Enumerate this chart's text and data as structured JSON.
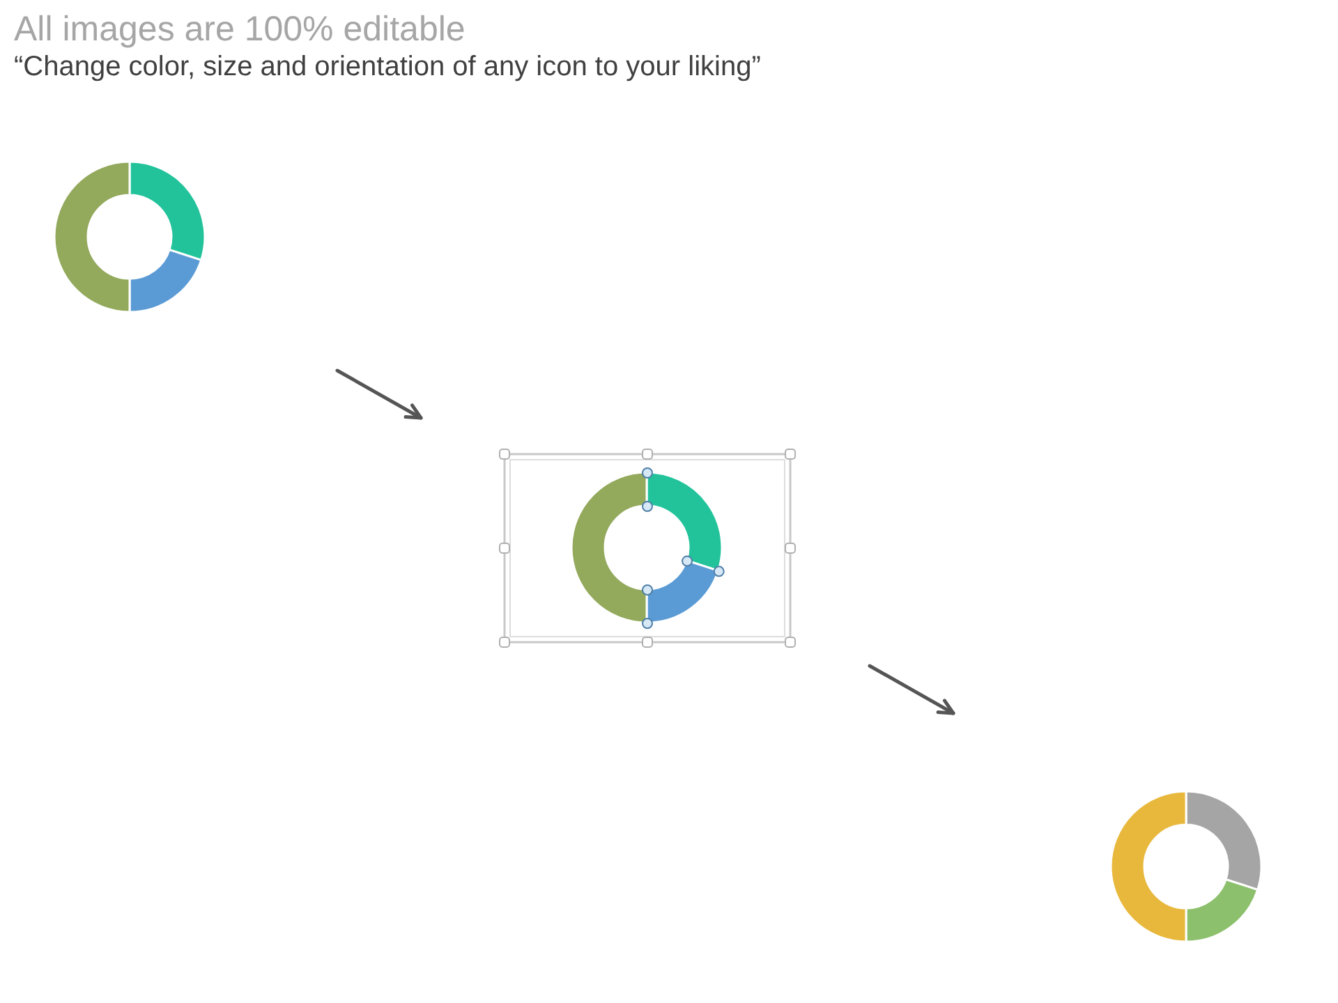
{
  "chart_data": [
    {
      "type": "donut",
      "title": "All images are 100% editable",
      "subtitle": "“Change color, size and orientation of any icon to your liking”",
      "categories": [
        null,
        null,
        null
      ],
      "values": [
        30,
        20,
        50
      ],
      "colors": [
        "#22c39b",
        "#5b9bd5",
        "#93a95c"
      ]
    },
    {
      "type": "donut",
      "categories": [
        null,
        null,
        null
      ],
      "values": [
        30,
        20,
        50
      ],
      "colors": [
        "#22c39b",
        "#5b9bd5",
        "#93a95c"
      ]
    },
    {
      "type": "donut",
      "categories": [
        null,
        null,
        null
      ],
      "values": [
        30,
        20,
        50
      ],
      "colors": [
        "#a5a5a5",
        "#8cc06c",
        "#e8b83c"
      ]
    }
  ]
}
